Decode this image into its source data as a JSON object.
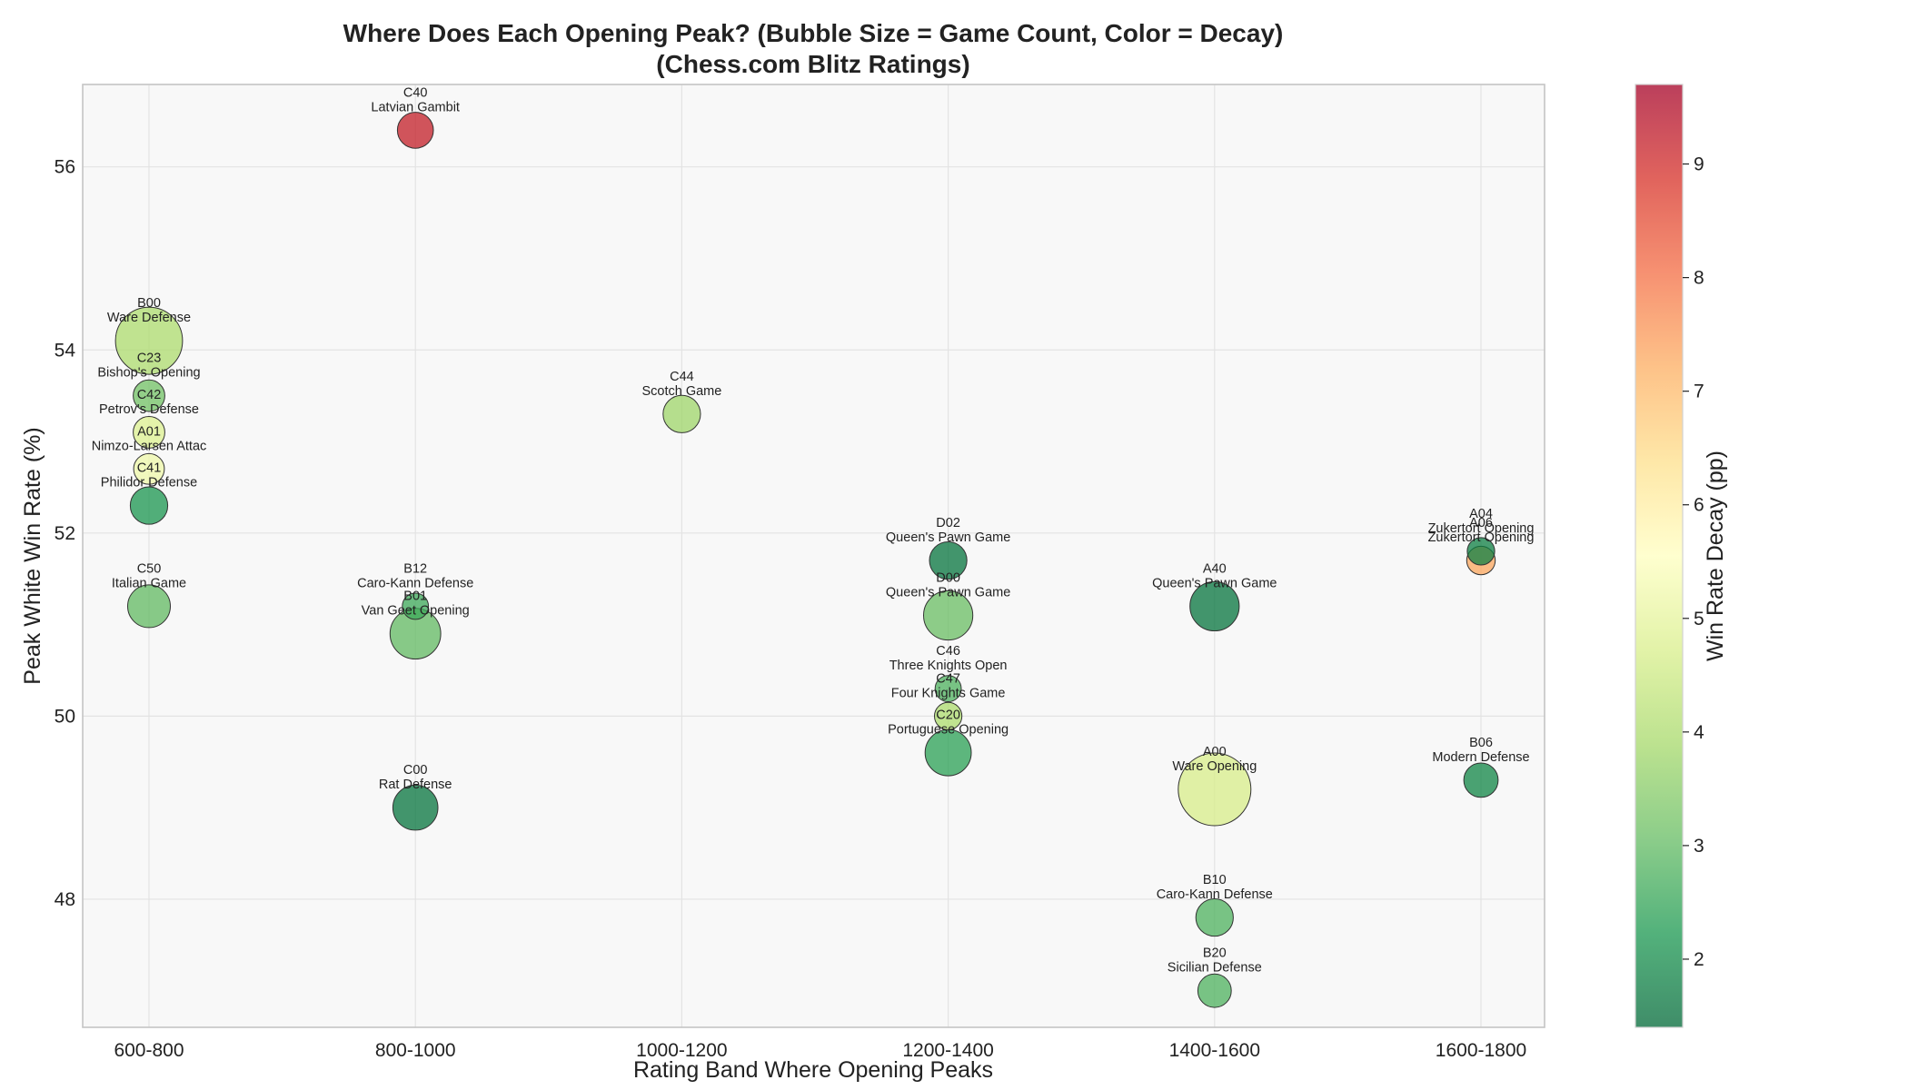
{
  "chart_data": {
    "type": "scatter",
    "title": [
      "Where Does Each Opening Peak? (Bubble Size = Game Count, Color = Decay)",
      "(Chess.com Blitz Ratings)"
    ],
    "xlabel": "Rating Band Where Opening Peaks",
    "ylabel": "Peak White Win Rate (%)",
    "categories": [
      "600-800",
      "800-1000",
      "1000-1200",
      "1200-1400",
      "1400-1600",
      "1600-1800"
    ],
    "ylim": [
      46.6,
      56.9
    ],
    "yticks": [
      48,
      50,
      52,
      54,
      56
    ],
    "grid": true,
    "colorbar": {
      "label": "Win Rate Decay (pp)",
      "range": [
        1.4,
        9.7
      ],
      "ticks": [
        2,
        3,
        4,
        5,
        6,
        7,
        8,
        9
      ],
      "colormap": "RdYlGn_r"
    },
    "points": [
      {
        "eco": "C40",
        "name": "Latvian Gambit",
        "band": "800-1000",
        "y": 56.4,
        "decay": 9.2,
        "size": 0.15
      },
      {
        "eco": "B00",
        "name": "Ware Defense",
        "band": "600-800",
        "y": 54.1,
        "decay": 4.0,
        "size": 0.82
      },
      {
        "eco": "C23",
        "name": "Bishop's Opening",
        "band": "600-800",
        "y": 53.5,
        "decay": 3.2,
        "size": 0.1
      },
      {
        "eco": "C42",
        "name": "Petrov's Defense",
        "band": "600-800",
        "y": 53.1,
        "decay": 4.8,
        "size": 0.1
      },
      {
        "eco": "A01",
        "name": "Nimzo-Larsen Attac",
        "band": "600-800",
        "y": 52.7,
        "decay": 5.2,
        "size": 0.09
      },
      {
        "eco": "C41",
        "name": "Philidor Defense",
        "band": "600-800",
        "y": 52.3,
        "decay": 2.2,
        "size": 0.17
      },
      {
        "eco": "C50",
        "name": "Italian Game",
        "band": "600-800",
        "y": 51.2,
        "decay": 3.0,
        "size": 0.25
      },
      {
        "eco": "C44",
        "name": "Scotch Game",
        "band": "1000-1200",
        "y": 53.3,
        "decay": 3.8,
        "size": 0.17
      },
      {
        "eco": "B12",
        "name": "Caro-Kann Defense",
        "band": "800-1000",
        "y": 51.2,
        "decay": 2.6,
        "size": 0.05
      },
      {
        "eco": "B01",
        "name": "Van Geet Opening",
        "band": "800-1000",
        "y": 50.9,
        "decay": 3.0,
        "size": 0.4
      },
      {
        "eco": "C00",
        "name": "Rat Defense",
        "band": "800-1000",
        "y": 49.0,
        "decay": 1.6,
        "size": 0.29
      },
      {
        "eco": "D02",
        "name": "Queen's Pawn Game",
        "band": "1200-1400",
        "y": 51.7,
        "decay": 1.6,
        "size": 0.17
      },
      {
        "eco": "D00",
        "name": "Queen's Pawn Game",
        "band": "1200-1400",
        "y": 51.1,
        "decay": 3.1,
        "size": 0.37
      },
      {
        "eco": "C46",
        "name": "Three Knights Open",
        "band": "1200-1400",
        "y": 50.3,
        "decay": 2.8,
        "size": 0.05
      },
      {
        "eco": "C47",
        "name": "Four Knights Game",
        "band": "1200-1400",
        "y": 50.0,
        "decay": 4.0,
        "size": 0.06
      },
      {
        "eco": "C20",
        "name": "Portuguese Opening",
        "band": "1200-1400",
        "y": 49.6,
        "decay": 2.4,
        "size": 0.31
      },
      {
        "eco": "A40",
        "name": "Queen's Pawn Game",
        "band": "1400-1600",
        "y": 51.2,
        "decay": 1.6,
        "size": 0.37
      },
      {
        "eco": "A00",
        "name": "Ware Opening",
        "band": "1400-1600",
        "y": 49.2,
        "decay": 4.7,
        "size": 1.0
      },
      {
        "eco": "B10",
        "name": "Caro-Kann Defense",
        "band": "1400-1600",
        "y": 47.8,
        "decay": 2.8,
        "size": 0.17
      },
      {
        "eco": "B20",
        "name": "Sicilian Defense",
        "band": "1400-1600",
        "y": 47.0,
        "decay": 2.8,
        "size": 0.12
      },
      {
        "eco": "A04",
        "name": "Zukertort Opening",
        "band": "1600-1800",
        "y": 51.8,
        "decay": 1.8,
        "size": 0.06
      },
      {
        "eco": "A06",
        "name": "Zukertort Opening",
        "band": "1600-1800",
        "y": 51.7,
        "decay": 7.3,
        "size": 0.07
      },
      {
        "eco": "B06",
        "name": "Modern Defense",
        "band": "1600-1800",
        "y": 49.3,
        "decay": 1.9,
        "size": 0.13
      }
    ]
  }
}
